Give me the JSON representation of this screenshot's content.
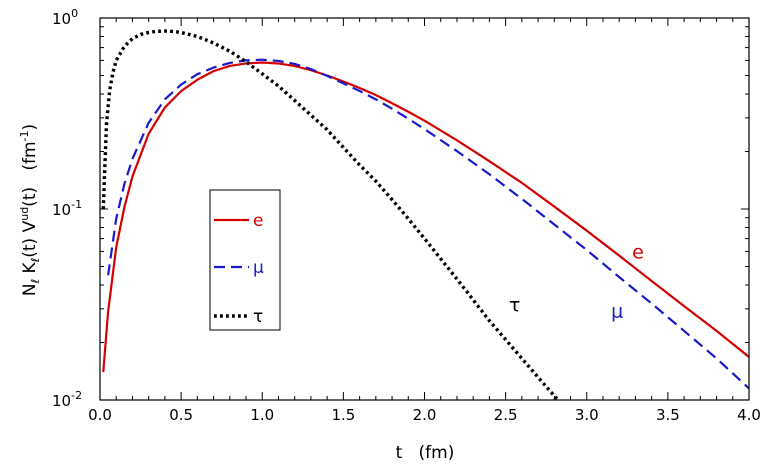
{
  "chart_data": {
    "type": "line",
    "title": "",
    "xlabel": "t   (fm)",
    "ylabel": {
      "parts": [
        "N",
        "ℓ",
        " K",
        "ℓ",
        "(t) V",
        "ud",
        "(t)   (fm",
        "-1",
        ")"
      ]
    },
    "x_scale": "linear",
    "y_scale": "log",
    "xlim": [
      0.0,
      4.0
    ],
    "ylim": [
      0.01,
      1.0
    ],
    "x_ticks": [
      "0.0",
      "0.5",
      "1.0",
      "1.5",
      "2.0",
      "2.5",
      "3.0",
      "3.5",
      "4.0"
    ],
    "y_ticks": [
      {
        "base": "10",
        "exp": "0"
      },
      {
        "base": "10",
        "exp": "-1"
      },
      {
        "base": "10",
        "exp": "-2"
      }
    ],
    "grid": false,
    "legend": {
      "placement": "left-middle",
      "entries": [
        {
          "label": "e",
          "style": "solid",
          "color": "#d40000"
        },
        {
          "label": "μ",
          "style": "dashed",
          "color": "#1a1acc"
        },
        {
          "label": "τ",
          "style": "dotted",
          "color": "#000000"
        }
      ]
    },
    "annotations": [
      {
        "text": "e",
        "color": "#d40000",
        "at": [
          3.28,
          0.055
        ]
      },
      {
        "text": "μ",
        "color": "#1a1acc",
        "at": [
          3.15,
          0.027
        ]
      },
      {
        "text": "τ",
        "color": "#000000",
        "at": [
          2.52,
          0.029
        ]
      }
    ],
    "series": [
      {
        "name": "e",
        "color": "#d40000",
        "style": "solid",
        "x": [
          0.02,
          0.05,
          0.1,
          0.15,
          0.2,
          0.3,
          0.4,
          0.5,
          0.6,
          0.7,
          0.8,
          0.9,
          1.0,
          1.1,
          1.2,
          1.3,
          1.4,
          1.5,
          1.6,
          1.7,
          1.8,
          1.9,
          2.0,
          2.2,
          2.4,
          2.6,
          2.8,
          3.0,
          3.2,
          3.4,
          3.6,
          3.8,
          4.0
        ],
        "y": [
          0.014,
          0.029,
          0.063,
          0.102,
          0.148,
          0.248,
          0.34,
          0.414,
          0.475,
          0.527,
          0.561,
          0.578,
          0.585,
          0.578,
          0.56,
          0.533,
          0.5,
          0.465,
          0.43,
          0.395,
          0.358,
          0.323,
          0.29,
          0.229,
          0.178,
          0.137,
          0.103,
          0.077,
          0.057,
          0.042,
          0.031,
          0.023,
          0.0168
        ]
      },
      {
        "name": "μ",
        "color": "#1a1acc",
        "style": "dashed",
        "x": [
          0.05,
          0.1,
          0.15,
          0.2,
          0.3,
          0.4,
          0.5,
          0.6,
          0.7,
          0.8,
          0.9,
          1.0,
          1.1,
          1.2,
          1.3,
          1.4,
          1.5,
          1.6,
          1.7,
          1.8,
          1.9,
          2.0,
          2.2,
          2.4,
          2.6,
          2.8,
          3.0,
          3.2,
          3.4,
          3.6,
          3.8,
          4.0
        ],
        "y": [
          0.045,
          0.089,
          0.135,
          0.183,
          0.283,
          0.375,
          0.448,
          0.508,
          0.55,
          0.582,
          0.6,
          0.605,
          0.596,
          0.575,
          0.54,
          0.498,
          0.455,
          0.415,
          0.375,
          0.335,
          0.297,
          0.262,
          0.201,
          0.152,
          0.113,
          0.083,
          0.061,
          0.044,
          0.032,
          0.023,
          0.0165,
          0.0115
        ]
      },
      {
        "name": "τ",
        "color": "#000000",
        "style": "dotted",
        "x": [
          0.02,
          0.04,
          0.06,
          0.08,
          0.1,
          0.15,
          0.2,
          0.25,
          0.3,
          0.35,
          0.4,
          0.45,
          0.5,
          0.55,
          0.6,
          0.7,
          0.8,
          0.9,
          1.0,
          1.1,
          1.2,
          1.3,
          1.4,
          1.5,
          1.6,
          1.7,
          1.8,
          1.9,
          2.0,
          2.2,
          2.4,
          2.6,
          2.8,
          2.95
        ],
        "y": [
          0.1,
          0.28,
          0.42,
          0.52,
          0.6,
          0.71,
          0.78,
          0.82,
          0.84,
          0.852,
          0.855,
          0.85,
          0.84,
          0.82,
          0.8,
          0.74,
          0.67,
          0.59,
          0.51,
          0.44,
          0.37,
          0.31,
          0.26,
          0.21,
          0.17,
          0.14,
          0.112,
          0.089,
          0.07,
          0.043,
          0.026,
          0.0165,
          0.0105,
          0.0078
        ]
      }
    ]
  }
}
